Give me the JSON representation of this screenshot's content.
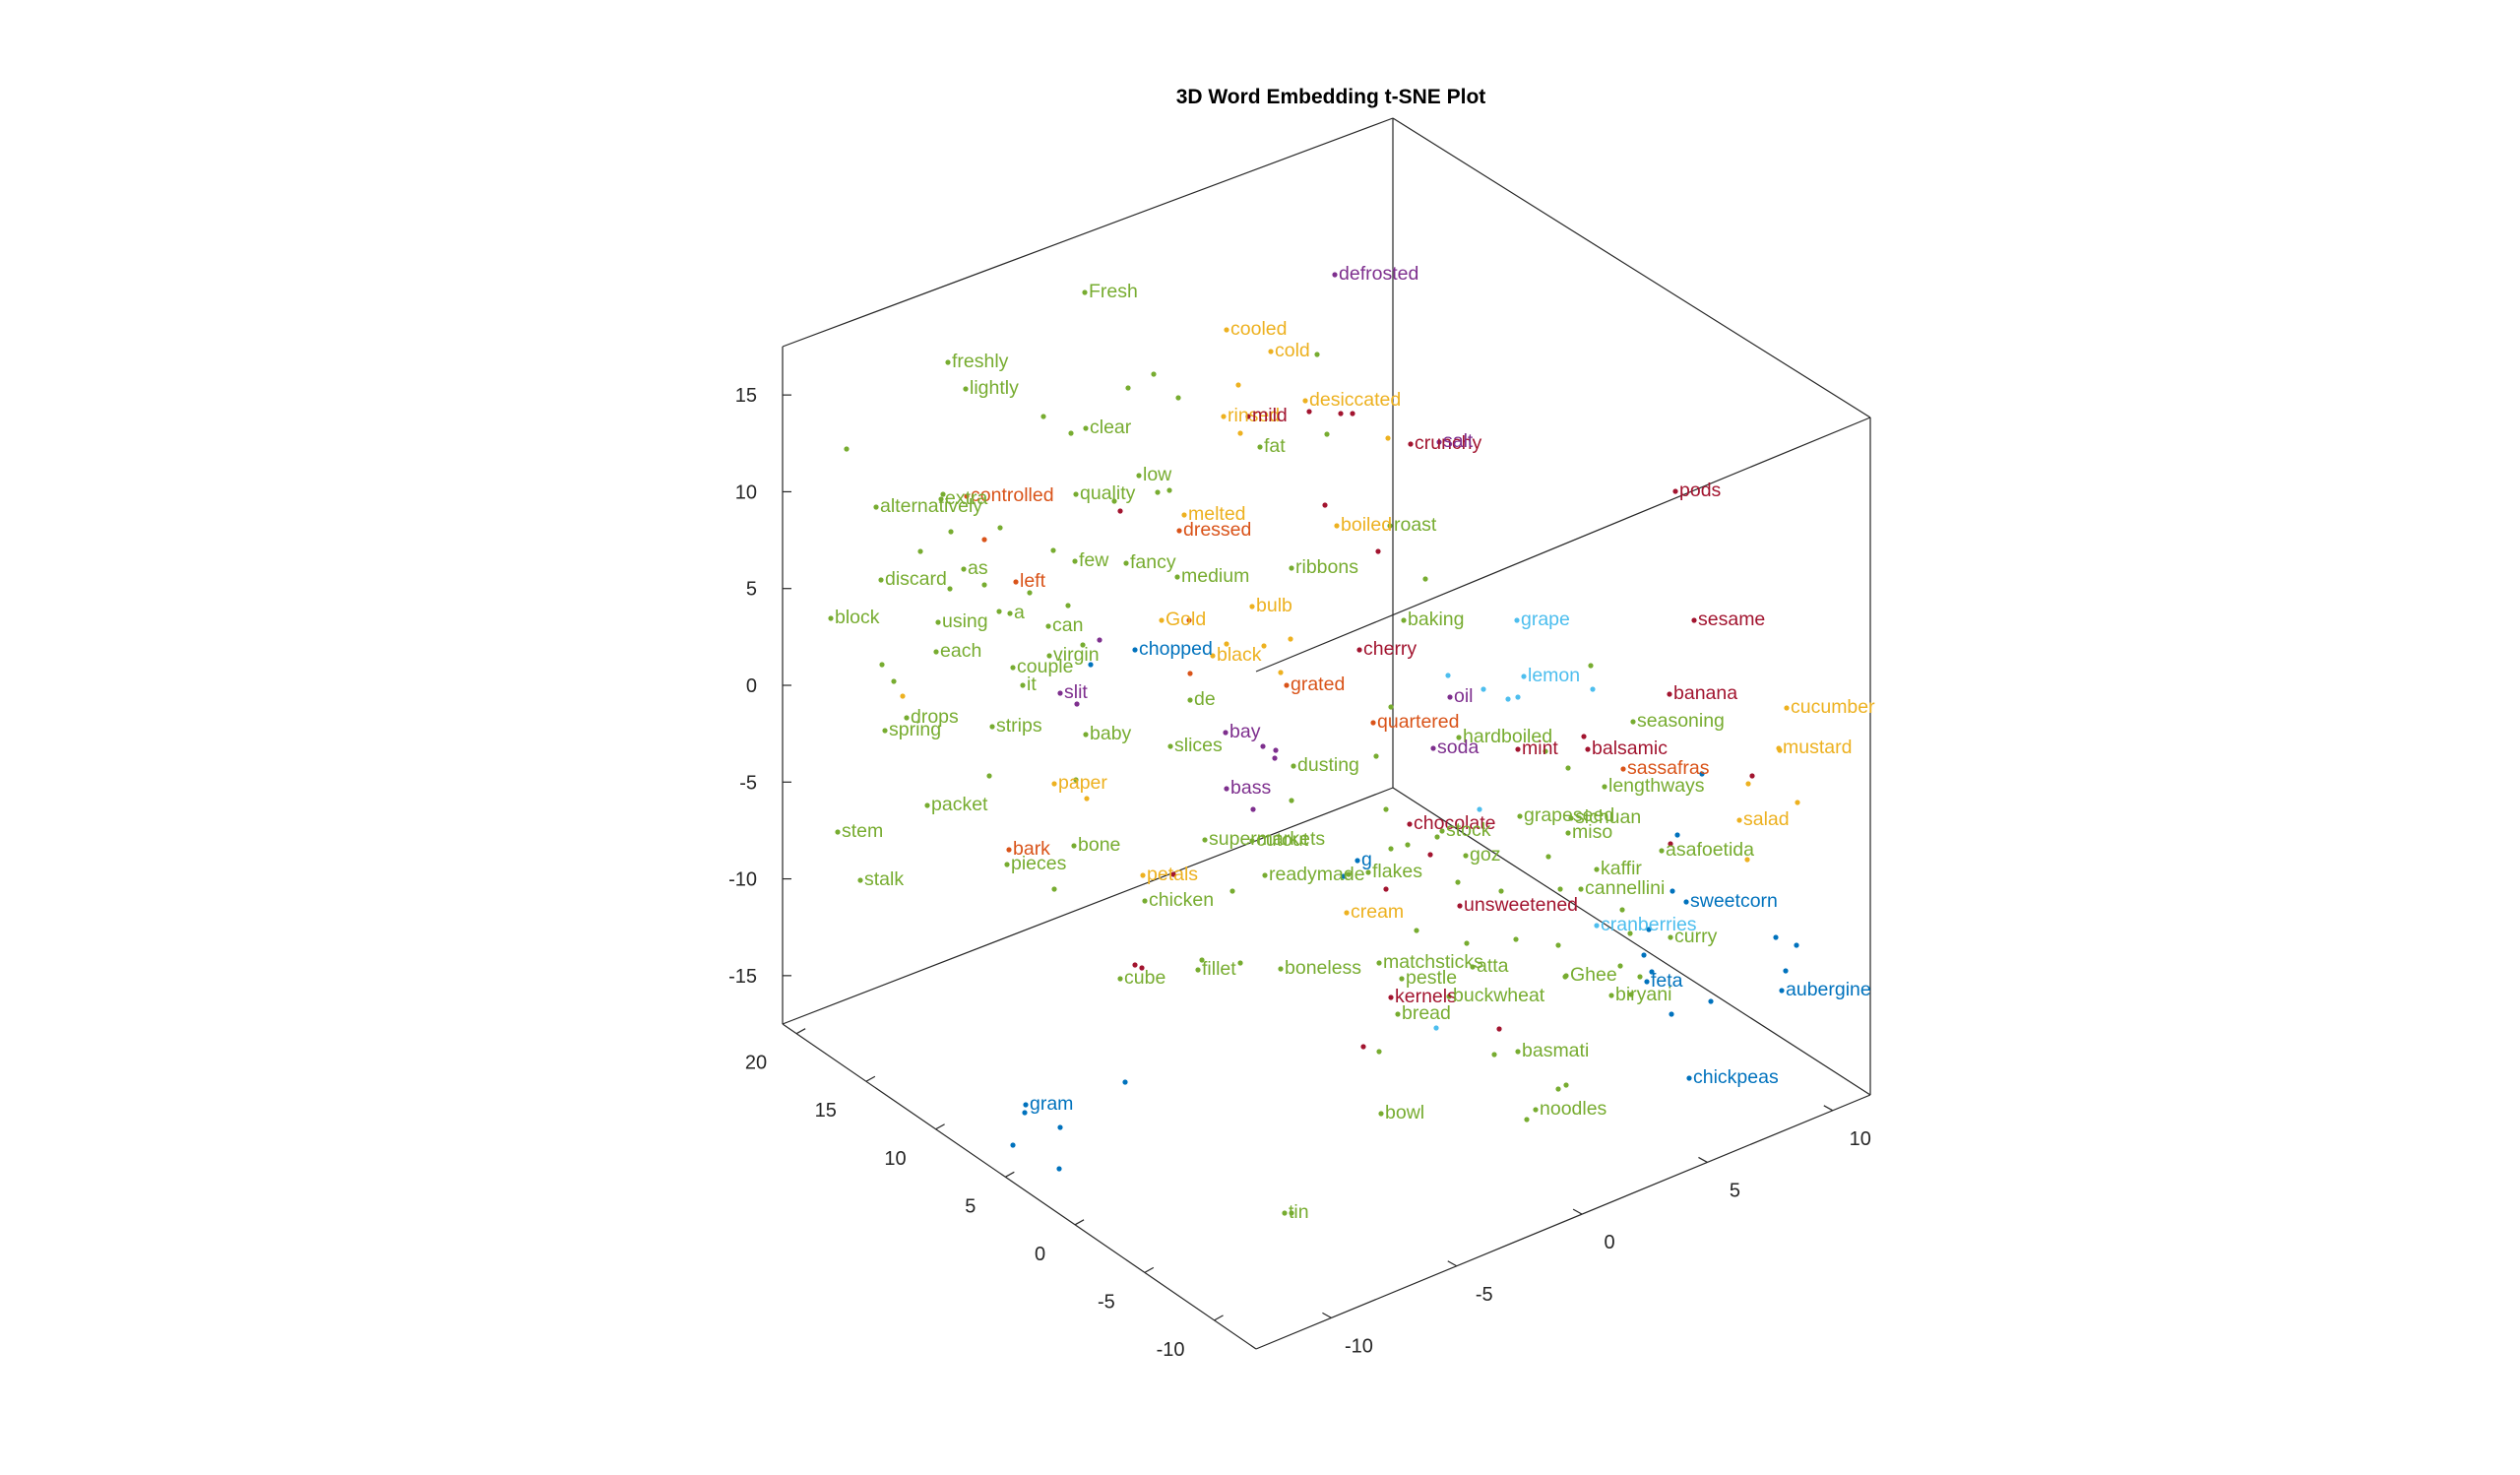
{
  "chart_data": {
    "type": "scatter3d",
    "title": "3D Word Embedding t-SNE Plot",
    "xlabel": "",
    "ylabel": "",
    "zlabel": "",
    "x_ticks": [
      -10,
      -5,
      0,
      5,
      10
    ],
    "y_ticks": [
      -10,
      -5,
      0,
      5,
      10,
      15,
      20
    ],
    "z_ticks": [
      -15,
      -10,
      -5,
      0,
      5,
      10,
      15
    ],
    "grid": false,
    "colors": {
      "green": "#77AC30",
      "orange": "#EDB120",
      "red": "#D95319",
      "darkred": "#A2142F",
      "purple": "#7E2F8E",
      "blue": "#0072BD",
      "lightblue": "#4DBEEE"
    },
    "labels": [
      {
        "text": "defrosted",
        "c": "purple"
      },
      {
        "text": "Fresh",
        "c": "green"
      },
      {
        "text": "cooled",
        "c": "orange"
      },
      {
        "text": "cold",
        "c": "orange"
      },
      {
        "text": "freshly",
        "c": "green"
      },
      {
        "text": "lightly",
        "c": "green"
      },
      {
        "text": "desiccated",
        "c": "orange"
      },
      {
        "text": "rinsed",
        "c": "orange"
      },
      {
        "text": "mild",
        "c": "darkred"
      },
      {
        "text": "clear",
        "c": "green"
      },
      {
        "text": "fat",
        "c": "green"
      },
      {
        "text": "crunchy",
        "c": "darkred"
      },
      {
        "text": "salt",
        "c": "purple"
      },
      {
        "text": "low",
        "c": "green"
      },
      {
        "text": "controlled",
        "c": "red"
      },
      {
        "text": "quality",
        "c": "green"
      },
      {
        "text": "alternatively",
        "c": "green"
      },
      {
        "text": "extra",
        "c": "green"
      },
      {
        "text": "melted",
        "c": "orange"
      },
      {
        "text": "dressed",
        "c": "red"
      },
      {
        "text": "boiled",
        "c": "orange"
      },
      {
        "text": "roast",
        "c": "green"
      },
      {
        "text": "pods",
        "c": "darkred"
      },
      {
        "text": "discard",
        "c": "green"
      },
      {
        "text": "as",
        "c": "green"
      },
      {
        "text": "left",
        "c": "red"
      },
      {
        "text": "few",
        "c": "green"
      },
      {
        "text": "fancy",
        "c": "green"
      },
      {
        "text": "medium",
        "c": "green"
      },
      {
        "text": "ribbons",
        "c": "green"
      },
      {
        "text": "a",
        "c": "green"
      },
      {
        "text": "block",
        "c": "green"
      },
      {
        "text": "using",
        "c": "green"
      },
      {
        "text": "can",
        "c": "green"
      },
      {
        "text": "Gold",
        "c": "orange"
      },
      {
        "text": "bulb",
        "c": "orange"
      },
      {
        "text": "baking",
        "c": "green"
      },
      {
        "text": "grape",
        "c": "lightblue"
      },
      {
        "text": "sesame",
        "c": "darkred"
      },
      {
        "text": "each",
        "c": "green"
      },
      {
        "text": "virgin",
        "c": "green"
      },
      {
        "text": "chopped",
        "c": "blue"
      },
      {
        "text": "black",
        "c": "orange"
      },
      {
        "text": "cherry",
        "c": "darkred"
      },
      {
        "text": "couple",
        "c": "green"
      },
      {
        "text": "lemon",
        "c": "lightblue"
      },
      {
        "text": "it",
        "c": "green"
      },
      {
        "text": "grated",
        "c": "red"
      },
      {
        "text": "slit",
        "c": "purple"
      },
      {
        "text": "de",
        "c": "green"
      },
      {
        "text": "oil",
        "c": "purple"
      },
      {
        "text": "banana",
        "c": "darkred"
      },
      {
        "text": "cucumber",
        "c": "orange"
      },
      {
        "text": "drops",
        "c": "green"
      },
      {
        "text": "quartered",
        "c": "red"
      },
      {
        "text": "seasoning",
        "c": "green"
      },
      {
        "text": "spring",
        "c": "green"
      },
      {
        "text": "strips",
        "c": "green"
      },
      {
        "text": "baby",
        "c": "green"
      },
      {
        "text": "bay",
        "c": "purple"
      },
      {
        "text": "hardboiled",
        "c": "green"
      },
      {
        "text": "slices",
        "c": "green"
      },
      {
        "text": "soda",
        "c": "purple"
      },
      {
        "text": "mint",
        "c": "darkred"
      },
      {
        "text": "balsamic",
        "c": "darkred"
      },
      {
        "text": "mustard",
        "c": "orange"
      },
      {
        "text": "dusting",
        "c": "green"
      },
      {
        "text": "sassafras",
        "c": "red"
      },
      {
        "text": "paper",
        "c": "orange"
      },
      {
        "text": "bass",
        "c": "purple"
      },
      {
        "text": "lengthways",
        "c": "green"
      },
      {
        "text": "packet",
        "c": "green"
      },
      {
        "text": "grapeseed",
        "c": "green"
      },
      {
        "text": "sichuan",
        "c": "green"
      },
      {
        "text": "salad",
        "c": "orange"
      },
      {
        "text": "chocolate",
        "c": "darkred"
      },
      {
        "text": "stock",
        "c": "green"
      },
      {
        "text": "stem",
        "c": "green"
      },
      {
        "text": "miso",
        "c": "green"
      },
      {
        "text": "supermarkets",
        "c": "green"
      },
      {
        "text": "cutout",
        "c": "green"
      },
      {
        "text": "bark",
        "c": "red"
      },
      {
        "text": "bone",
        "c": "green"
      },
      {
        "text": "goz",
        "c": "green"
      },
      {
        "text": "asafoetida",
        "c": "green"
      },
      {
        "text": "g",
        "c": "blue"
      },
      {
        "text": "pieces",
        "c": "green"
      },
      {
        "text": "kaffir",
        "c": "green"
      },
      {
        "text": "flakes",
        "c": "green"
      },
      {
        "text": "stalk",
        "c": "green"
      },
      {
        "text": "petals",
        "c": "orange"
      },
      {
        "text": "readymade",
        "c": "green"
      },
      {
        "text": "cannellini",
        "c": "green"
      },
      {
        "text": "chicken",
        "c": "green"
      },
      {
        "text": "sweetcorn",
        "c": "blue"
      },
      {
        "text": "cream",
        "c": "orange"
      },
      {
        "text": "unsweetened",
        "c": "darkred"
      },
      {
        "text": "cranberries",
        "c": "lightblue"
      },
      {
        "text": "curry",
        "c": "green"
      },
      {
        "text": "matchsticks",
        "c": "green"
      },
      {
        "text": "atta",
        "c": "green"
      },
      {
        "text": "cube",
        "c": "green"
      },
      {
        "text": "fillet",
        "c": "green"
      },
      {
        "text": "boneless",
        "c": "green"
      },
      {
        "text": "pestle",
        "c": "green"
      },
      {
        "text": "Ghee",
        "c": "green"
      },
      {
        "text": "feta",
        "c": "blue"
      },
      {
        "text": "kernels",
        "c": "darkred"
      },
      {
        "text": "buckwheat",
        "c": "green"
      },
      {
        "text": "biryani",
        "c": "green"
      },
      {
        "text": "aubergine",
        "c": "blue"
      },
      {
        "text": "bread",
        "c": "green"
      },
      {
        "text": "basmati",
        "c": "green"
      },
      {
        "text": "chickpeas",
        "c": "blue"
      },
      {
        "text": "gram",
        "c": "blue"
      },
      {
        "text": "noodles",
        "c": "green"
      },
      {
        "text": "bowl",
        "c": "green"
      },
      {
        "text": "tin",
        "c": "green"
      }
    ]
  }
}
